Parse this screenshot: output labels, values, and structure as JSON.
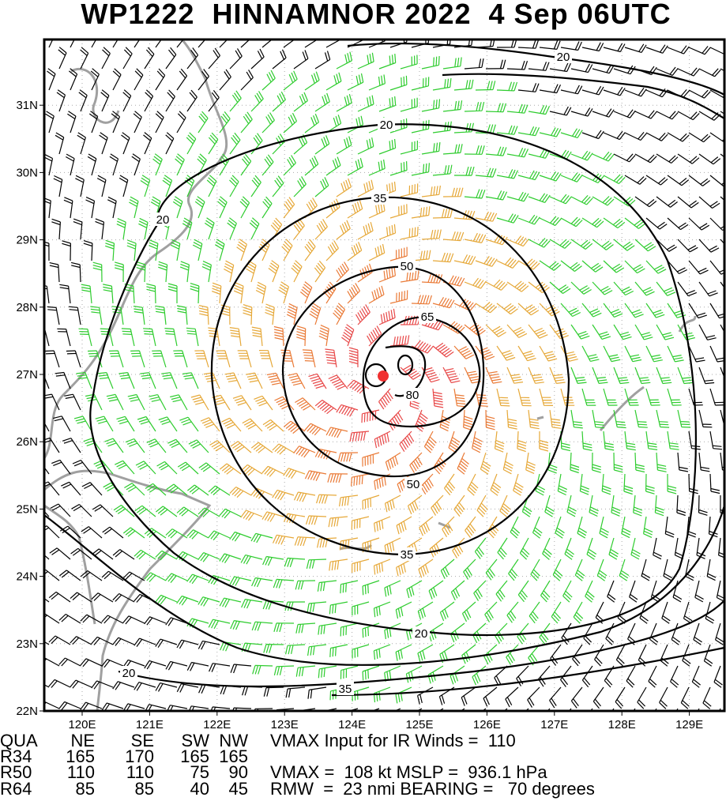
{
  "title": "WP1222  HINNAMNOR 2022  4 Sep 06UTC",
  "map": {
    "lon_labels": [
      "120E",
      "121E",
      "122E",
      "123E",
      "124E",
      "125E",
      "126E",
      "127E",
      "128E",
      "129E"
    ],
    "lat_labels": [
      "22N",
      "23N",
      "24N",
      "25N",
      "26N",
      "27N",
      "28N",
      "29N",
      "30N",
      "31N"
    ],
    "contour_labels": [
      "20",
      "20",
      "20",
      "20",
      "20",
      "35",
      "35",
      "35",
      "50",
      "50",
      "65",
      "80"
    ]
  },
  "table": {
    "header": [
      "QUA",
      "NE",
      "SE",
      "SW",
      "NW"
    ],
    "rows": [
      [
        "R34",
        "165",
        "170",
        "165",
        "165"
      ],
      [
        "R50",
        "110",
        "110",
        "75",
        "90"
      ],
      [
        "R64",
        "85",
        "85",
        "40",
        "45"
      ]
    ]
  },
  "info": [
    "VMAX Input for IR Winds =  110",
    "VMAX =  108 kt MSLP =  936.1 hPa",
    "RMW  =  23 nmi BEARING =   70 degrees"
  ]
}
